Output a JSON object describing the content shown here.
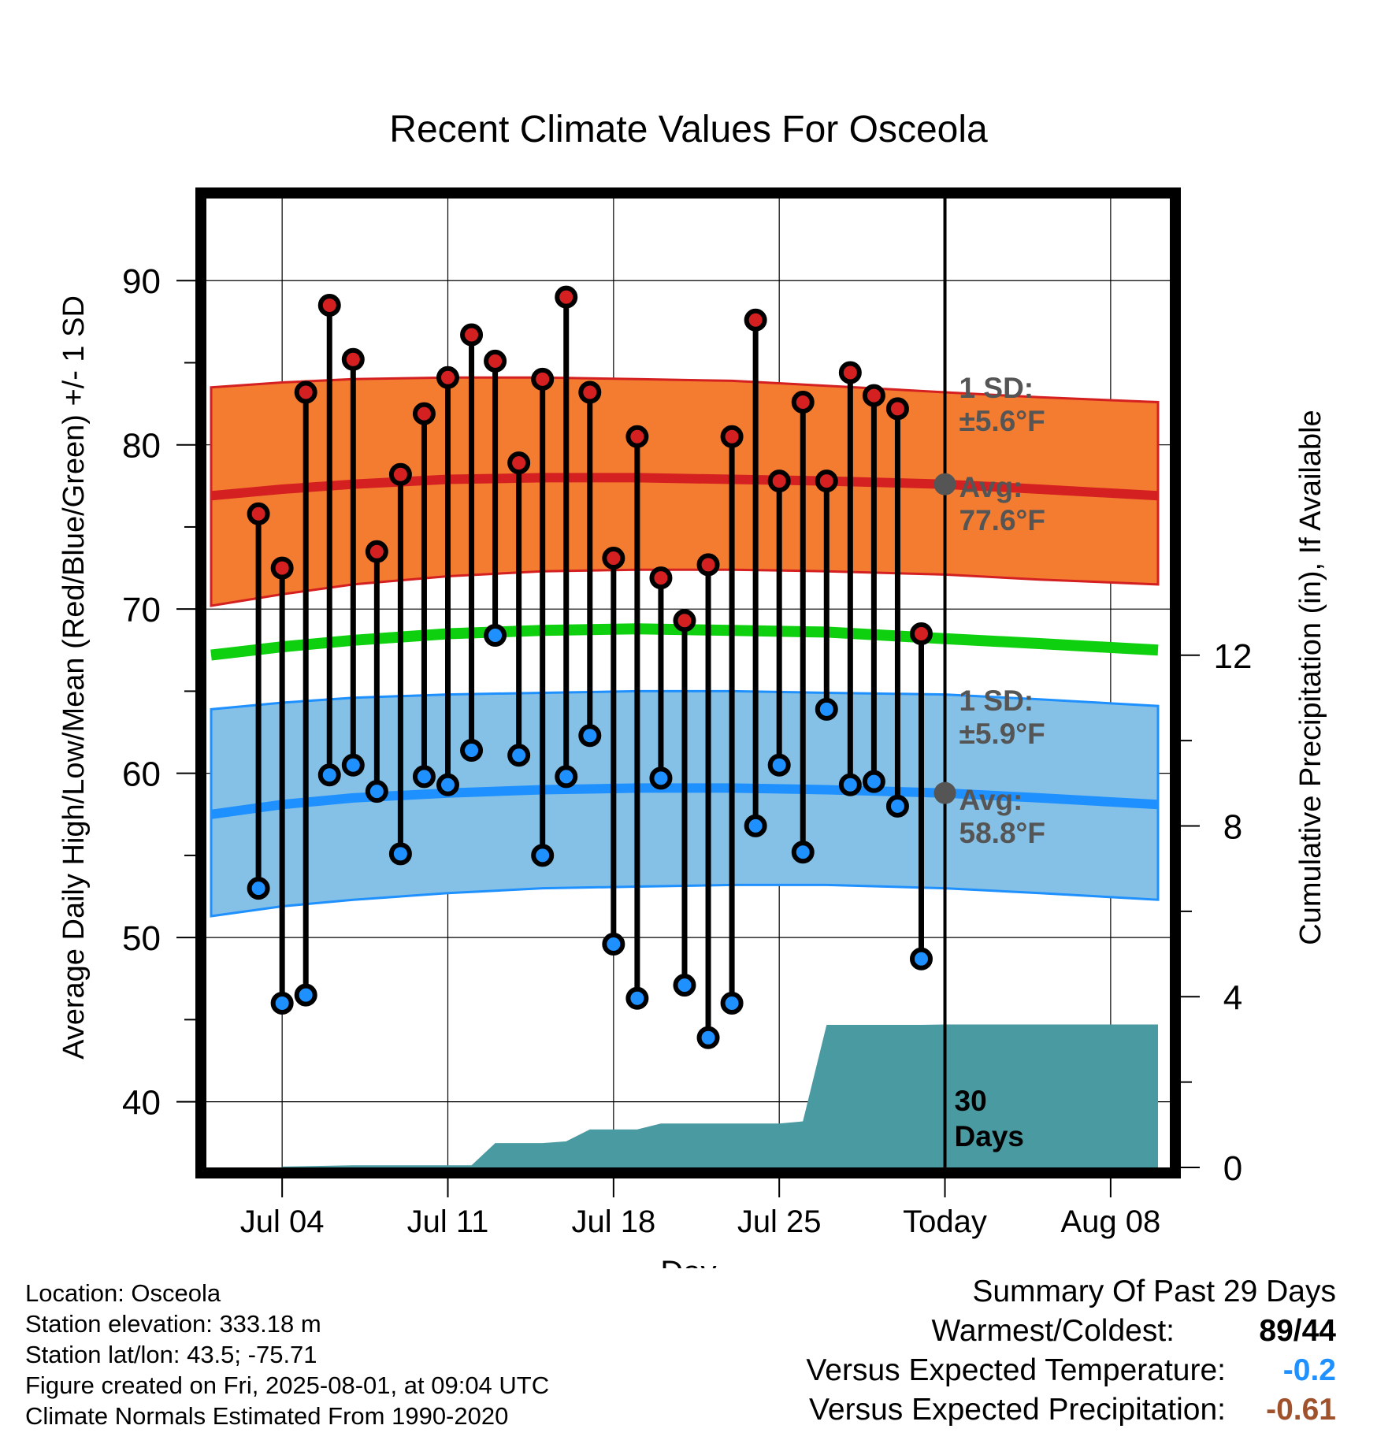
{
  "colors": {
    "high_band": "#f47c30",
    "high_line": "#d42020",
    "low_band": "#85c1e6",
    "low_line": "#1e90ff",
    "mean_line": "#0fd00f",
    "precip": "#4a9aa2",
    "label_gray": "#555555",
    "temp_anomaly": "#1e90ff",
    "precip_anomaly": "#a0522d"
  },
  "chart_data": {
    "type": "line",
    "title": "Recent Climate Values For Osceola",
    "xlabel": "Day",
    "ylabel": "Average Daily High/Low/Mean (Red/Blue/Green) +/- 1 SD",
    "y2label": "Cumulative Precipitation (in), If Available",
    "x_ticks": [
      "Jul 04",
      "Jul 11",
      "Jul 18",
      "Jul 25",
      "Today",
      "Aug 08"
    ],
    "x_tick_days": [
      4,
      11,
      18,
      25,
      32,
      39
    ],
    "xlim": [
      0.8,
      41.5
    ],
    "ylim": [
      36,
      95
    ],
    "y_ticks": [
      40,
      50,
      60,
      70,
      80,
      90
    ],
    "y2lim": [
      0,
      22.7
    ],
    "y2_ticks": [
      0,
      4,
      8,
      12
    ],
    "today_day": 32,
    "today_label": "30 Days",
    "normals": {
      "days": [
        1,
        4,
        7,
        11,
        15,
        19,
        23,
        27,
        32,
        36,
        41
      ],
      "high_mean": [
        76.9,
        77.3,
        77.6,
        77.9,
        78.0,
        78.0,
        77.9,
        77.8,
        77.6,
        77.3,
        76.9
      ],
      "high_upper": [
        83.5,
        83.8,
        84.0,
        84.1,
        84.1,
        84.0,
        83.9,
        83.6,
        83.2,
        82.9,
        82.6
      ],
      "high_lower": [
        70.2,
        70.9,
        71.5,
        72.0,
        72.3,
        72.4,
        72.4,
        72.3,
        72.1,
        71.8,
        71.5
      ],
      "low_mean": [
        57.5,
        58.1,
        58.5,
        58.8,
        59.0,
        59.1,
        59.1,
        59.0,
        58.8,
        58.5,
        58.1
      ],
      "low_upper": [
        63.9,
        64.3,
        64.6,
        64.8,
        64.9,
        65.0,
        65.0,
        64.9,
        64.8,
        64.5,
        64.1
      ],
      "low_lower": [
        51.3,
        51.9,
        52.3,
        52.7,
        53.0,
        53.1,
        53.2,
        53.2,
        53.0,
        52.7,
        52.3
      ],
      "mean": [
        67.2,
        67.7,
        68.1,
        68.5,
        68.7,
        68.8,
        68.7,
        68.6,
        68.2,
        67.9,
        67.5
      ]
    },
    "series": [
      {
        "name": "High",
        "x": [
          3,
          4,
          5,
          6,
          7,
          8,
          9,
          10,
          11,
          12,
          13,
          14,
          15,
          16,
          17,
          18,
          19,
          20,
          21,
          22,
          23,
          24,
          25,
          26,
          27,
          28,
          29,
          30,
          31
        ],
        "values": [
          75.8,
          72.5,
          83.2,
          88.5,
          85.2,
          73.5,
          78.2,
          81.9,
          84.1,
          86.7,
          85.1,
          78.9,
          84.0,
          89.0,
          83.2,
          73.1,
          80.5,
          71.9,
          69.3,
          72.7,
          80.5,
          87.6,
          77.8,
          82.6,
          77.8,
          84.4,
          83.0,
          82.2,
          68.5
        ]
      },
      {
        "name": "Low",
        "x": [
          3,
          4,
          5,
          6,
          7,
          8,
          9,
          10,
          11,
          12,
          13,
          14,
          15,
          16,
          17,
          18,
          19,
          20,
          21,
          22,
          23,
          24,
          25,
          26,
          27,
          28,
          29,
          30,
          31
        ],
        "values": [
          53.0,
          46.0,
          46.5,
          59.9,
          60.5,
          58.9,
          55.1,
          59.8,
          59.3,
          61.4,
          68.4,
          61.1,
          55.0,
          59.8,
          62.3,
          49.6,
          46.3,
          59.7,
          47.1,
          43.9,
          46.0,
          56.8,
          60.5,
          55.2,
          63.9,
          59.3,
          59.5,
          58.0,
          48.7
        ]
      },
      {
        "name": "Cumulative Precipitation",
        "x": [
          4,
          7,
          12,
          13,
          15,
          16,
          17,
          19,
          20,
          21,
          23,
          25,
          26,
          27,
          31,
          32,
          41
        ],
        "values": [
          0.02,
          0.05,
          0.05,
          0.57,
          0.57,
          0.61,
          0.89,
          0.89,
          1.03,
          1.03,
          1.03,
          1.03,
          1.08,
          3.34,
          3.34,
          3.35,
          3.35
        ]
      }
    ],
    "annotations": {
      "high_sd_label": "1 SD:",
      "high_sd_value": "±5.6°F",
      "high_avg_label": "Avg:",
      "high_avg_value": "77.6°F",
      "high_avg": 77.6,
      "low_sd_label": "1 SD:",
      "low_sd_value": "±5.9°F",
      "low_avg_label": "Avg:",
      "low_avg_value": "58.8°F",
      "low_avg": 58.8
    }
  },
  "footer": {
    "location": "Location: Osceola",
    "elevation": "Station elevation: 333.18 m",
    "latlon": "Station lat/lon: 43.5; -75.71",
    "created": "Figure created on Fri, 2025-08-01, at 09:04 UTC",
    "normals": "Climate Normals Estimated From 1990-2020"
  },
  "summary": {
    "title": "Summary Of Past 29 Days",
    "warmest_label": "Warmest/Coldest:",
    "warmest_value": "89/44",
    "temp_label": "Versus Expected Temperature:",
    "temp_value": "-0.2",
    "precip_label": "Versus Expected Precipitation:",
    "precip_value": "-0.61"
  }
}
